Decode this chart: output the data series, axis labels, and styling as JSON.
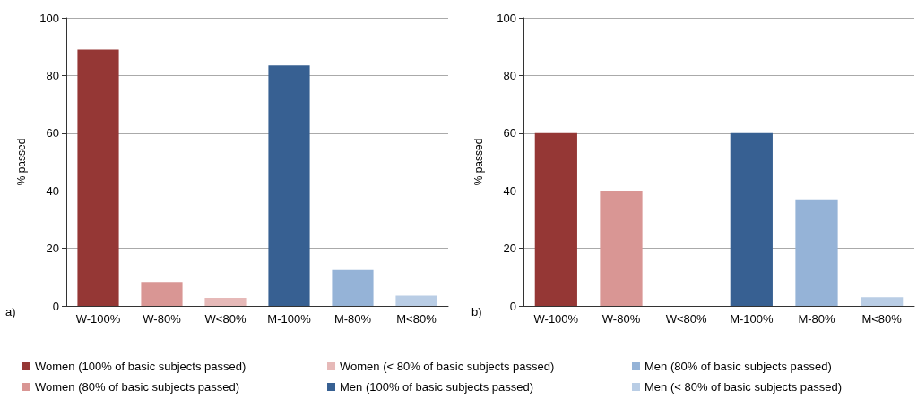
{
  "chart_data": [
    {
      "type": "bar",
      "ylabel": "% passed",
      "categories": [
        "W-100%",
        "W-80%",
        "W<80%",
        "M-100%",
        "M-80%",
        "M<80%"
      ],
      "series": [
        {
          "name": "Women (100% of basic subjects passed)",
          "color": "#953735",
          "values": [
            89,
            null,
            null,
            null,
            null,
            null
          ]
        },
        {
          "name": "Women (80% of basic subjects passed)",
          "color": "#d99694",
          "values": [
            null,
            8.3,
            null,
            null,
            null,
            null
          ]
        },
        {
          "name": "Women (< 80% of basic subjects passed)",
          "color": "#e6b9b8",
          "values": [
            null,
            null,
            2.8,
            null,
            null,
            null
          ]
        },
        {
          "name": "Men (100% of basic subjects passed)",
          "color": "#376092",
          "values": [
            null,
            null,
            null,
            83.5,
            null,
            null
          ]
        },
        {
          "name": "Men (80% of basic subjects passed)",
          "color": "#95b3d7",
          "values": [
            null,
            null,
            null,
            null,
            12.5,
            null
          ]
        },
        {
          "name": "Men (< 80% of basic subjects passed)",
          "color": "#b9cde5",
          "values": [
            null,
            null,
            null,
            null,
            null,
            3.6
          ]
        }
      ],
      "ylim": [
        0,
        100
      ],
      "yticks": [
        0,
        20,
        40,
        60,
        80,
        100
      ],
      "grid": "y",
      "legend": "bottom",
      "annotations": [
        "a)"
      ]
    },
    {
      "type": "bar",
      "ylabel": "% passed",
      "categories": [
        "W-100%",
        "W-80%",
        "W<80%",
        "M-100%",
        "M-80%",
        "M<80%"
      ],
      "series": [
        {
          "color": "#953735",
          "values": [
            60,
            null,
            null,
            null,
            null,
            null
          ]
        },
        {
          "color": "#d99694",
          "values": [
            null,
            40,
            null,
            null,
            null,
            null
          ]
        },
        {
          "color": "#e6b9b8",
          "values": [
            null,
            null,
            0,
            null,
            null,
            null
          ]
        },
        {
          "color": "#376092",
          "values": [
            null,
            null,
            null,
            60,
            null,
            null
          ]
        },
        {
          "color": "#95b3d7",
          "values": [
            null,
            null,
            null,
            null,
            37,
            null
          ]
        },
        {
          "color": "#b9cde5",
          "values": [
            null,
            null,
            null,
            null,
            null,
            3
          ]
        }
      ],
      "ylim": [
        0,
        100
      ],
      "yticks": [
        0,
        20,
        40,
        60,
        80,
        100
      ],
      "grid": "y",
      "annotations": [
        "b)"
      ]
    }
  ]
}
